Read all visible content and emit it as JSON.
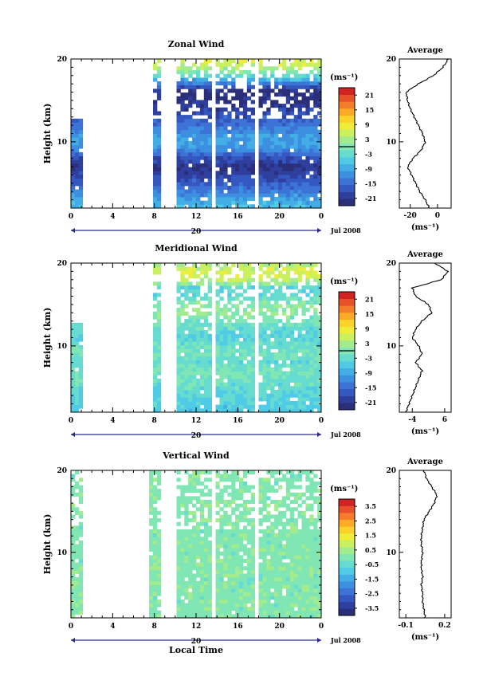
{
  "colorbar_colors": [
    "#2b2f7a",
    "#2e3f9e",
    "#3557c0",
    "#3d73d6",
    "#3d8fe0",
    "#43aee6",
    "#4fcbe6",
    "#66dcd0",
    "#7fe6b4",
    "#a3ec8e",
    "#cbf05f",
    "#eeee3a",
    "#fbd22a",
    "#fbab26",
    "#f57d2a",
    "#e8502a",
    "#d02424"
  ],
  "chart_data": [
    {
      "type": "heatmap",
      "title": "Zonal Wind",
      "ylabel": "Height (km)",
      "xlabel": "",
      "x_ticks": [
        "0",
        "4",
        "8",
        "12",
        "16",
        "20",
        "0"
      ],
      "y_ticks": [
        "10",
        "20"
      ],
      "ylim": [
        2,
        20
      ],
      "xlim": [
        0,
        24
      ],
      "time_axis": {
        "day": "20",
        "month_year": "Jul 2008"
      },
      "colorbar": {
        "unit": "(ms⁻¹)",
        "ticks": [
          "21",
          "15",
          "9",
          "3",
          "-3",
          "-9",
          "-15",
          "-21"
        ],
        "range": [
          -24,
          24
        ],
        "zero_line": true
      },
      "data_gaps_hours": [
        [
          1,
          7.7
        ],
        [
          8.6,
          10
        ],
        [
          13.6,
          14
        ],
        [
          17.5,
          17.9
        ]
      ],
      "profile_levels_km": [
        2,
        3,
        4,
        5,
        6,
        7,
        8,
        9,
        10,
        11,
        12,
        13,
        14,
        15,
        16,
        17,
        18,
        19,
        20
      ],
      "profile_values": [
        -6,
        -9,
        -13,
        -16,
        -19,
        -22,
        -18,
        -12,
        -9,
        -11,
        -14,
        -17,
        -20,
        -22,
        -23,
        -14,
        -3,
        4,
        8
      ],
      "profile": {
        "title": "Average",
        "xlabel": "(ms⁻¹)",
        "x_ticks": [
          "-20",
          "0"
        ],
        "xlim": [
          -28,
          10
        ],
        "y_ticks": [
          "10",
          "20"
        ],
        "ylim": [
          2,
          20
        ]
      }
    },
    {
      "type": "heatmap",
      "title": "Meridional Wind",
      "ylabel": "Height (km)",
      "xlabel": "",
      "x_ticks": [
        "0",
        "4",
        "8",
        "12",
        "16",
        "20",
        "0"
      ],
      "y_ticks": [
        "10",
        "20"
      ],
      "ylim": [
        2,
        20
      ],
      "xlim": [
        0,
        24
      ],
      "time_axis": {
        "day": "20",
        "month_year": "Jul 2008"
      },
      "colorbar": {
        "unit": "(ms⁻¹)",
        "ticks": [
          "21",
          "15",
          "9",
          "3",
          "-3",
          "-9",
          "-15",
          "-21"
        ],
        "range": [
          -24,
          24
        ],
        "zero_line": true
      },
      "data_gaps_hours": [
        [
          1,
          7.7
        ],
        [
          8.6,
          10
        ],
        [
          13.6,
          14
        ],
        [
          17.5,
          17.9
        ]
      ],
      "profile_levels_km": [
        2,
        3,
        4,
        5,
        6,
        7,
        8,
        9,
        10,
        11,
        12,
        13,
        14,
        15,
        16,
        17,
        18,
        19,
        20
      ],
      "profile_values": [
        -6,
        -5,
        -4,
        -3,
        -2,
        -1,
        -3,
        -1,
        -2,
        -4,
        -3,
        -1,
        2,
        1,
        -3,
        -4,
        5,
        7,
        3
      ],
      "profile": {
        "title": "Average",
        "xlabel": "(ms⁻¹)",
        "x_ticks": [
          "-4",
          "6"
        ],
        "xlim": [
          -8,
          8
        ],
        "y_ticks": [
          "10",
          "20"
        ],
        "ylim": [
          2,
          20
        ]
      }
    },
    {
      "type": "heatmap",
      "title": "Vertical Wind",
      "ylabel": "Height (km)",
      "xlabel": "Local Time",
      "x_ticks": [
        "0",
        "4",
        "8",
        "12",
        "16",
        "20",
        "0"
      ],
      "y_ticks": [
        "10",
        "20"
      ],
      "ylim": [
        2,
        20
      ],
      "xlim": [
        0,
        24
      ],
      "time_axis": {
        "day": "20",
        "month_year": "Jul 2008"
      },
      "colorbar": {
        "unit": "(ms⁻¹)",
        "ticks": [
          "3.5",
          "2.5",
          "1.5",
          "0.5",
          "-0.5",
          "-1.5",
          "-2.5",
          "-3.5"
        ],
        "range": [
          -4,
          4
        ],
        "zero_line": false
      },
      "data_gaps_hours": [
        [
          1,
          7.4
        ],
        [
          8.5,
          10
        ],
        [
          13.6,
          14
        ],
        [
          17.5,
          17.9
        ]
      ],
      "profile_levels_km": [
        2,
        3,
        4,
        5,
        6,
        7,
        8,
        9,
        10,
        11,
        12,
        13,
        14,
        15,
        16,
        17,
        18,
        19,
        20
      ],
      "profile_values": [
        0.05,
        0.04,
        0.03,
        0.03,
        0.02,
        0.03,
        0.02,
        0.02,
        0.03,
        0.02,
        0.02,
        0.03,
        0.04,
        0.08,
        0.12,
        0.14,
        0.1,
        0.06,
        0.04
      ],
      "profile": {
        "title": "Average",
        "xlabel": "(ms⁻¹)",
        "x_ticks": [
          "-0.1",
          "0.2"
        ],
        "xlim": [
          -0.15,
          0.25
        ],
        "y_ticks": [
          "10",
          "20"
        ],
        "ylim": [
          2,
          20
        ]
      }
    }
  ]
}
